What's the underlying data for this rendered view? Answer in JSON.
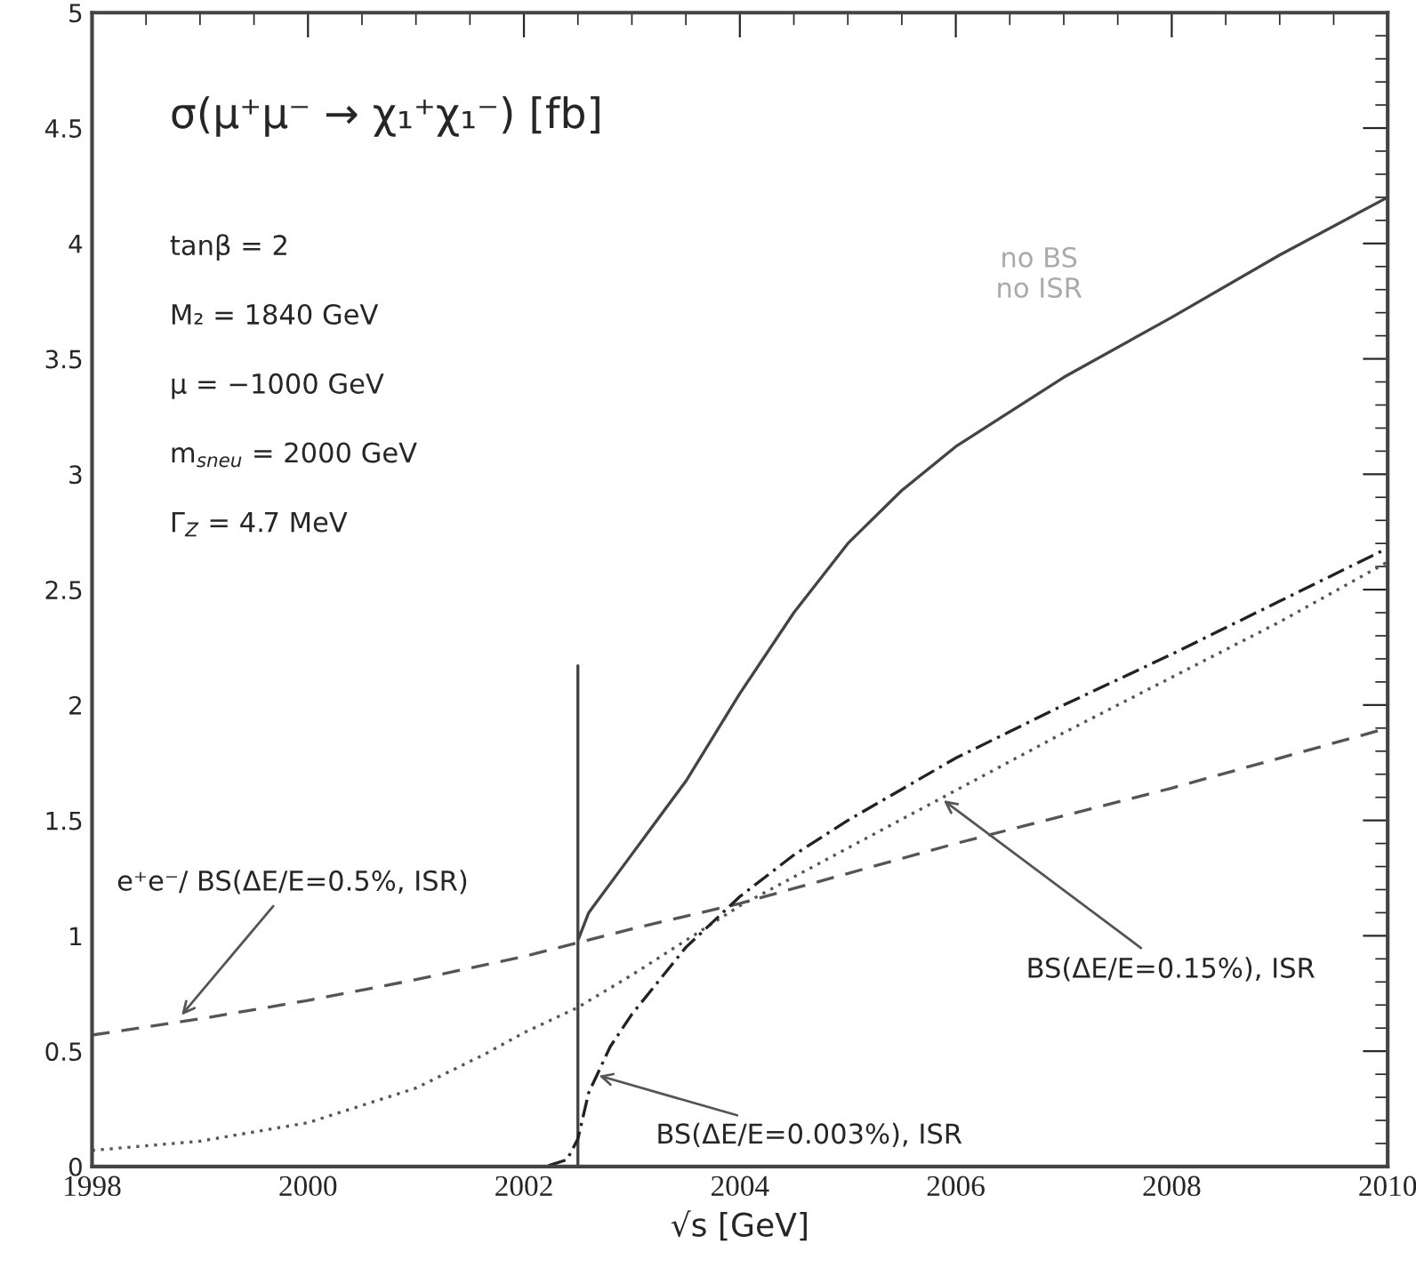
{
  "chart_data": {
    "type": "line",
    "title": "σ(μ⁺μ⁻ → χ₁⁺χ₁⁻) [fb]",
    "xlabel": "√s [GeV]",
    "xlim": [
      1998,
      2010
    ],
    "xticks": [
      1998,
      2000,
      2002,
      2004,
      2006,
      2008,
      2010
    ],
    "ylim": [
      0,
      5
    ],
    "yticks": [
      0,
      0.5,
      1,
      1.5,
      2,
      2.5,
      3,
      3.5,
      4,
      4.5,
      5
    ],
    "grid": false,
    "legend": false,
    "marker": "none",
    "series": [
      {
        "color": "#444444",
        "line_style": "solid",
        "x": [
          2002.5,
          2002.5,
          2002.5,
          2002.6,
          2002.9,
          2003.5,
          2004,
          2004.5,
          2005,
          2005.5,
          2006,
          2007,
          2008,
          2009,
          2010
        ],
        "values": [
          0,
          2.17,
          0.98,
          1.1,
          1.29,
          1.67,
          2.05,
          2.4,
          2.7,
          2.93,
          3.12,
          3.42,
          3.68,
          3.95,
          4.2
        ]
      },
      {
        "color": "#555555",
        "line_style": "dashed",
        "x": [
          1998,
          1999,
          2000,
          2001,
          2002,
          2002.5,
          2003,
          2004,
          2005,
          2006,
          2007,
          2008,
          2009,
          2010
        ],
        "values": [
          0.57,
          0.64,
          0.72,
          0.81,
          0.91,
          0.97,
          1.03,
          1.14,
          1.27,
          1.4,
          1.52,
          1.64,
          1.77,
          1.9
        ]
      },
      {
        "color": "#555555",
        "line_style": "dotted",
        "x": [
          1998,
          1999,
          2000,
          2001,
          2001.65,
          2002,
          2002.5,
          2003,
          2004,
          2005,
          2006,
          2007,
          2008,
          2009,
          2010
        ],
        "values": [
          0.07,
          0.11,
          0.19,
          0.34,
          0.49,
          0.58,
          0.69,
          0.83,
          1.13,
          1.38,
          1.63,
          1.88,
          2.12,
          2.36,
          2.62
        ]
      },
      {
        "color": "#222222",
        "line_style": "dashdot",
        "x": [
          1998,
          2002.2,
          2002.4,
          2002.5,
          2002.6,
          2002.8,
          2003,
          2003.5,
          2004,
          2004.5,
          2005,
          2006,
          2007,
          2008,
          2009,
          2010
        ],
        "values": [
          0,
          0,
          0.03,
          0.12,
          0.32,
          0.52,
          0.66,
          0.95,
          1.17,
          1.35,
          1.5,
          1.77,
          2.0,
          2.22,
          2.45,
          2.68
        ]
      }
    ],
    "annotations": [
      "tanβ = 2",
      "M₂ = 1840 GeV",
      "μ = −1000 GeV",
      "m$_{sneu}$ = 2000 GeV",
      "Γ$_{Z}$ = 4.7 MeV",
      {
        "text": "no BS\nno ISR",
        "x": 2007,
        "y": 3.42
      },
      {
        "text": "e⁺e⁻/ BS(ΔE/E=0.5%, ISR)",
        "x": 1998.8,
        "y": 0.64
      },
      {
        "text": "BS(ΔE/E=0.003%), ISR",
        "x": 2002.65,
        "y": 0.4
      },
      {
        "text": "BS(ΔE/E=0.15%), ISR",
        "x": 2005.85,
        "y": 1.6
      }
    ]
  }
}
